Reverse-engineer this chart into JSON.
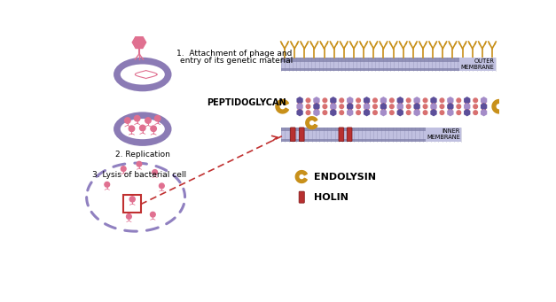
{
  "bg_color": "#ffffff",
  "purple_border": "#8b7bb5",
  "purple_light": "#a48cc8",
  "purple_dark": "#5c4f9a",
  "pink_phage": "#e07090",
  "orange_endolysin": "#c8901a",
  "red_holin": "#b83030",
  "salmon_chain": "#d87070",
  "membrane_fill": "#c0c0e0",
  "membrane_dark": "#8080a8",
  "text_color": "#222222",
  "dashed_color": "#9080c0",
  "arrow_color": "#c03030",
  "label1_line1": "1.  Attachment of phage and",
  "label1_line2": "entry of its genetic material",
  "label2": "2. Replication",
  "label3": "3. Lysis of bacterial cell",
  "label_peptido": "PEPTIDOGLYCAN",
  "label_outer": "OUTER\nMEMBRANE",
  "label_inner": "INNER\nMEMBRANE",
  "label_endolysin": "ENDOLYSIN",
  "label_holin": "HOLIN"
}
